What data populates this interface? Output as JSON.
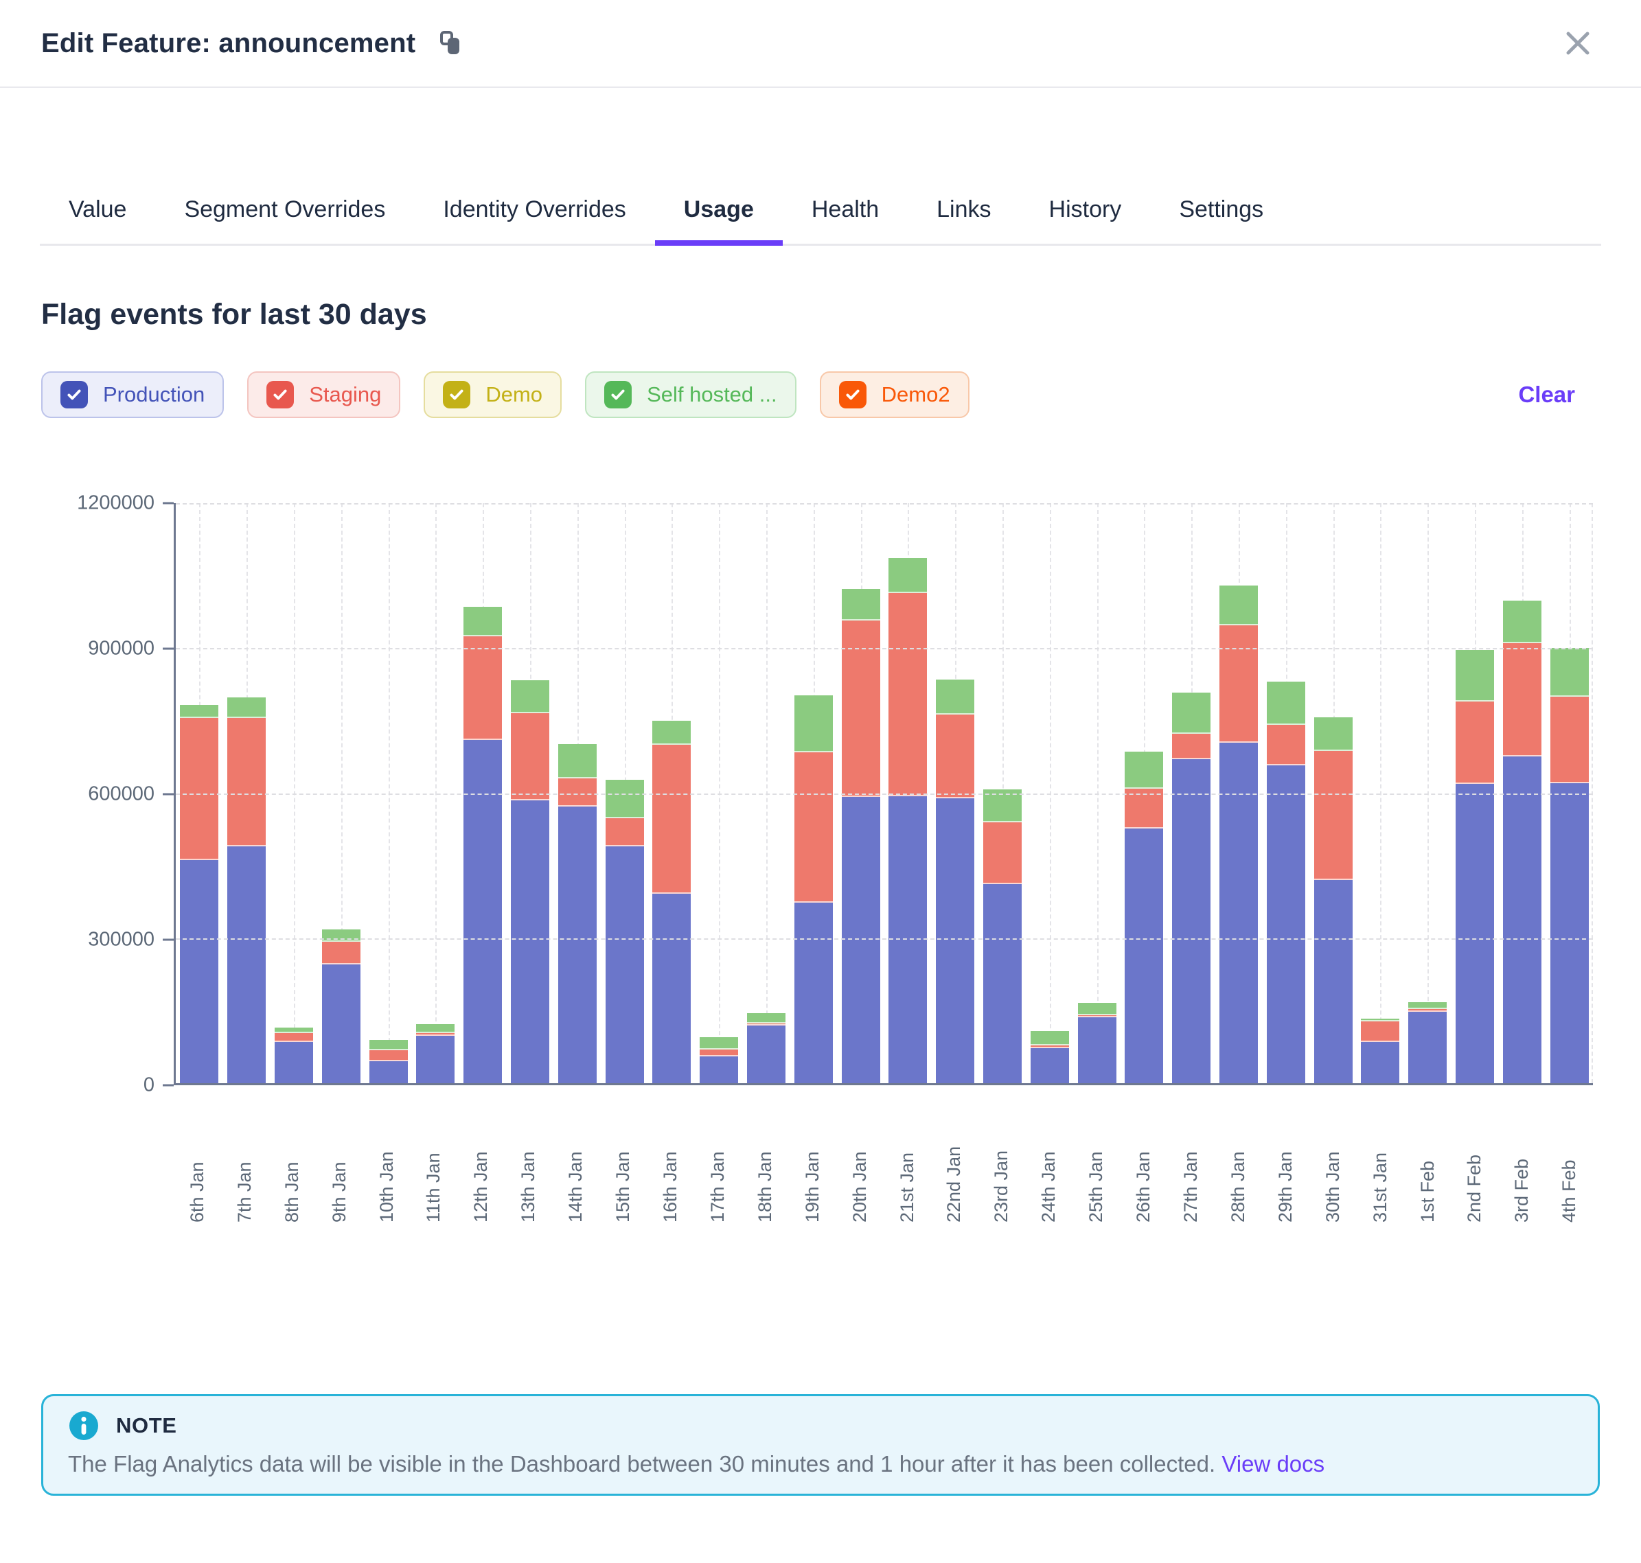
{
  "header": {
    "title": "Edit Feature: announcement",
    "copy_icon": "copy-icon",
    "close_icon": "close-icon"
  },
  "tabs": [
    {
      "label": "Value",
      "active": false
    },
    {
      "label": "Segment Overrides",
      "active": false
    },
    {
      "label": "Identity Overrides",
      "active": false
    },
    {
      "label": "Usage",
      "active": true
    },
    {
      "label": "Health",
      "active": false
    },
    {
      "label": "Links",
      "active": false
    },
    {
      "label": "History",
      "active": false
    },
    {
      "label": "Settings",
      "active": false
    }
  ],
  "section": {
    "title": "Flag events for last 30 days",
    "clear_label": "Clear"
  },
  "filters": [
    {
      "label": "Production",
      "checked": true,
      "color": "#4353b8",
      "bg": "#eceefa",
      "border": "#bcc3ea"
    },
    {
      "label": "Staging",
      "checked": true,
      "color": "#e8584e",
      "bg": "#fcebe9",
      "border": "#f4c5c0"
    },
    {
      "label": "Demo",
      "checked": true,
      "color": "#c3b117",
      "bg": "#faf7e3",
      "border": "#e5dd9e"
    },
    {
      "label": "Self hosted ...",
      "checked": true,
      "color": "#55b859",
      "bg": "#ebf7eb",
      "border": "#bfe5c0"
    },
    {
      "label": "Demo2",
      "checked": true,
      "color": "#f95808",
      "bg": "#fdeee3",
      "border": "#f8c8a9"
    }
  ],
  "accent_purple": "#6a3df8",
  "chart_data": {
    "type": "bar",
    "stacked": true,
    "title": "Flag events for last 30 days",
    "xlabel": "",
    "ylabel": "",
    "ylim": [
      0,
      1200000
    ],
    "yticks": [
      0,
      300000,
      600000,
      900000,
      1200000
    ],
    "grid": true,
    "legend_position": "top-filter-badges",
    "categories": [
      "6th Jan",
      "7th Jan",
      "8th Jan",
      "9th Jan",
      "10th Jan",
      "11th Jan",
      "12th Jan",
      "13th Jan",
      "14th Jan",
      "15th Jan",
      "16th Jan",
      "17th Jan",
      "18th Jan",
      "19th Jan",
      "20th Jan",
      "21st Jan",
      "22nd Jan",
      "23rd Jan",
      "24th Jan",
      "25th Jan",
      "26th Jan",
      "27th Jan",
      "28th Jan",
      "29th Jan",
      "30th Jan",
      "31st Jan",
      "1st Feb",
      "2nd Feb",
      "3rd Feb",
      "4th Feb"
    ],
    "series": [
      {
        "name": "Production",
        "color": "#6b76ca",
        "values": [
          462000,
          490000,
          85000,
          245000,
          45000,
          98000,
          710000,
          585000,
          572000,
          490000,
          392000,
          55000,
          120000,
          374000,
          592000,
          594000,
          590000,
          412000,
          73000,
          137000,
          527000,
          670000,
          705000,
          658000,
          420000,
          85000,
          148000,
          619000,
          676000,
          621000
        ]
      },
      {
        "name": "Staging",
        "color": "#ee796c",
        "values": [
          293000,
          265000,
          18000,
          48000,
          23000,
          6000,
          215000,
          180000,
          58000,
          58000,
          308000,
          14000,
          4000,
          310000,
          365000,
          420000,
          172000,
          128000,
          5000,
          4000,
          82000,
          53000,
          242000,
          84000,
          267000,
          43000,
          5000,
          170000,
          234000,
          178000
        ]
      },
      {
        "name": "Self hosted",
        "color": "#8bcb80",
        "values": [
          27000,
          43000,
          12000,
          25000,
          22000,
          18000,
          60000,
          68000,
          72000,
          80000,
          50000,
          26000,
          21000,
          118000,
          66000,
          72000,
          73000,
          68000,
          30000,
          25000,
          77000,
          85000,
          82000,
          89000,
          70000,
          5000,
          14000,
          107000,
          88000,
          101000
        ]
      }
    ]
  },
  "note": {
    "heading": "NOTE",
    "info_icon": "info-icon",
    "body": "The Flag Analytics data will be visible in the Dashboard between 30 minutes and 1 hour after it has been collected.",
    "link_label": "View docs"
  }
}
